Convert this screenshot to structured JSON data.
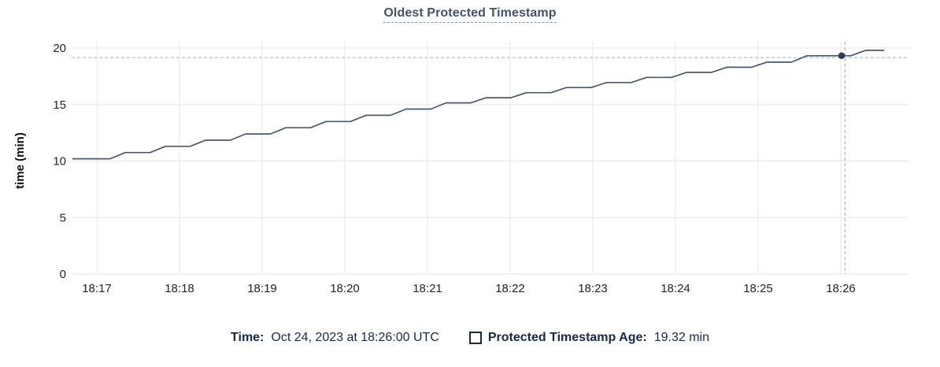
{
  "title": "Oldest Protected Timestamp",
  "chart_data": {
    "type": "line",
    "title": "Oldest Protected Timestamp",
    "xlabel": "",
    "ylabel": "time (min)",
    "ylim": [
      0,
      20
    ],
    "yticks": [
      0,
      5,
      10,
      15,
      20
    ],
    "xticks": [
      "18:17",
      "18:18",
      "18:19",
      "18:20",
      "18:21",
      "18:22",
      "18:23",
      "18:24",
      "18:25",
      "18:26"
    ],
    "grid": true,
    "legend_position": "bottom",
    "series": [
      {
        "name": "Protected Timestamp Age",
        "points_t_minutes_after_1817_vs_min": [
          [
            -0.29,
            10.2
          ],
          [
            0.16,
            10.2
          ],
          [
            0.345,
            10.75
          ],
          [
            0.645,
            10.75
          ],
          [
            0.83,
            11.3
          ],
          [
            1.13,
            11.3
          ],
          [
            1.315,
            11.85
          ],
          [
            1.615,
            11.85
          ],
          [
            1.8,
            12.4
          ],
          [
            2.1,
            12.4
          ],
          [
            2.285,
            12.95
          ],
          [
            2.585,
            12.95
          ],
          [
            2.77,
            13.5
          ],
          [
            3.07,
            13.5
          ],
          [
            3.255,
            14.05
          ],
          [
            3.555,
            14.05
          ],
          [
            3.74,
            14.6
          ],
          [
            4.04,
            14.6
          ],
          [
            4.225,
            15.15
          ],
          [
            4.525,
            15.15
          ],
          [
            4.71,
            15.6
          ],
          [
            5.01,
            15.6
          ],
          [
            5.195,
            16.05
          ],
          [
            5.495,
            16.05
          ],
          [
            5.68,
            16.5
          ],
          [
            5.98,
            16.5
          ],
          [
            6.165,
            16.95
          ],
          [
            6.465,
            16.95
          ],
          [
            6.65,
            17.4
          ],
          [
            6.95,
            17.4
          ],
          [
            7.135,
            17.85
          ],
          [
            7.435,
            17.85
          ],
          [
            7.62,
            18.3
          ],
          [
            7.92,
            18.3
          ],
          [
            8.105,
            18.75
          ],
          [
            8.405,
            18.75
          ],
          [
            8.59,
            19.32
          ],
          [
            9.12,
            19.32
          ],
          [
            9.3,
            19.8
          ],
          [
            9.52,
            19.8
          ]
        ]
      }
    ],
    "crosshair": {
      "vline_t": 9.05,
      "hline_value": 19.16,
      "dot": {
        "t": 9.01,
        "value": 19.32
      }
    },
    "hover_readout": {
      "time": "Oct 24, 2023 at 18:26:00 UTC",
      "value": "19.32 min"
    }
  },
  "legend": {
    "time_label": "Time:",
    "time_value": "Oct 24, 2023 at 18:26:00 UTC",
    "series_label": "Protected Timestamp Age:",
    "series_value": "19.32 min"
  },
  "colors": {
    "line": "#475872",
    "dot": "#2c3a57",
    "crosshair": "#a6b8c5",
    "grid": "#e7e7e7",
    "title_text": "#42526e",
    "legend_text": "#15294b",
    "axis_text": "#242424"
  }
}
